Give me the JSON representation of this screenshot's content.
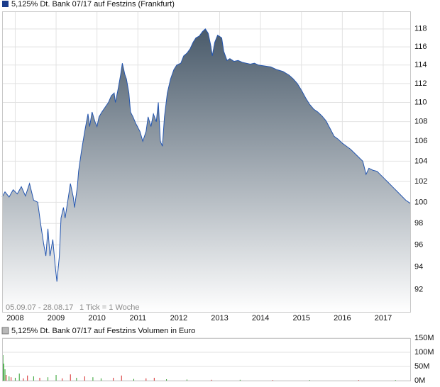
{
  "chart_data": [
    {
      "type": "area",
      "title": "5,125% Dt. Bank 07/17 auf Festzins (Frankfurt)",
      "annotations": [
        "05.09.07 - 28.08.17",
        "1 Tick = 1 Woche"
      ],
      "x": [
        2007.68,
        2007.75,
        2007.85,
        2007.95,
        2008.05,
        2008.15,
        2008.25,
        2008.35,
        2008.45,
        2008.55,
        2008.62,
        2008.7,
        2008.75,
        2008.8,
        2008.85,
        2008.92,
        2008.98,
        2009.02,
        2009.08,
        2009.12,
        2009.18,
        2009.22,
        2009.3,
        2009.35,
        2009.42,
        2009.45,
        2009.52,
        2009.55,
        2009.62,
        2009.7,
        2009.78,
        2009.82,
        2009.88,
        2009.95,
        2010.0,
        2010.05,
        2010.12,
        2010.2,
        2010.28,
        2010.35,
        2010.42,
        2010.45,
        2010.52,
        2010.58,
        2010.62,
        2010.68,
        2010.72,
        2010.78,
        2010.82,
        2010.88,
        2010.95,
        2011.05,
        2011.12,
        2011.2,
        2011.25,
        2011.32,
        2011.38,
        2011.45,
        2011.5,
        2011.55,
        2011.6,
        2011.65,
        2011.72,
        2011.8,
        2011.88,
        2011.95,
        2012.05,
        2012.12,
        2012.2,
        2012.28,
        2012.35,
        2012.42,
        2012.5,
        2012.58,
        2012.65,
        2012.72,
        2012.78,
        2012.82,
        2012.88,
        2012.95,
        2013.05,
        2013.1,
        2013.18,
        2013.25,
        2013.35,
        2013.45,
        2013.55,
        2013.65,
        2013.75,
        2013.85,
        2013.95,
        2014.1,
        2014.25,
        2014.4,
        2014.55,
        2014.7,
        2014.8,
        2014.9,
        2015.0,
        2015.1,
        2015.2,
        2015.3,
        2015.4,
        2015.5,
        2015.6,
        2015.7,
        2015.8,
        2015.9,
        2016.0,
        2016.1,
        2016.2,
        2016.3,
        2016.4,
        2016.5,
        2016.58,
        2016.65,
        2016.75,
        2016.85,
        2016.95,
        2017.05,
        2017.15,
        2017.25,
        2017.35,
        2017.45,
        2017.55,
        2017.66
      ],
      "values": [
        100.5,
        101,
        100.5,
        101.2,
        100.8,
        101.5,
        100.6,
        101.8,
        100.2,
        100,
        98,
        96,
        95,
        97.5,
        95,
        96.5,
        94,
        92.7,
        95,
        98.5,
        99.5,
        98.5,
        100.5,
        101.8,
        100.5,
        99.5,
        101.5,
        103,
        105,
        107,
        108.8,
        107.5,
        109,
        108,
        107.5,
        108.5,
        109,
        109.5,
        110,
        110.7,
        111,
        110,
        111.5,
        113,
        114.2,
        113,
        112.5,
        111,
        109,
        108.5,
        107.8,
        107,
        106,
        107,
        108.5,
        107.5,
        108.8,
        108,
        110,
        106,
        105.5,
        108.5,
        111,
        112.5,
        113.5,
        114,
        114.2,
        115,
        115.3,
        115.8,
        116.5,
        117,
        117.2,
        117.7,
        118,
        117.5,
        116.2,
        115,
        116.5,
        117.3,
        117,
        115.5,
        114.5,
        114.7,
        114.4,
        114.5,
        114.3,
        114.2,
        114.1,
        114.2,
        114,
        113.9,
        113.8,
        113.5,
        113.3,
        112.9,
        112.5,
        112,
        111.3,
        110.5,
        109.8,
        109.3,
        109,
        108.6,
        108.1,
        107.3,
        106.5,
        106.2,
        105.8,
        105.5,
        105.2,
        104.8,
        104.4,
        104,
        102.7,
        103.3,
        103.1,
        103,
        102.6,
        102.2,
        101.8,
        101.4,
        101,
        100.6,
        100.2,
        99.9
      ],
      "color": "#2456b0",
      "legend_color": "#1a3c8c",
      "fill_top": "#495a6a",
      "fill_bottom": "#ffffff",
      "log_scale": true,
      "grid": true,
      "xlim": [
        2007.68,
        2017.66
      ],
      "xticks": [
        2008,
        2009,
        2010,
        2011,
        2012,
        2013,
        2014,
        2015,
        2016,
        2017
      ],
      "ylim": [
        90,
        120
      ],
      "yticks": [
        92,
        94,
        96,
        98,
        100,
        102,
        104,
        106,
        108,
        110,
        112,
        114,
        116,
        118
      ]
    },
    {
      "type": "bar",
      "title": "5,125% Dt. Bank 07/17 auf Festzins Volumen in Euro",
      "legend_color": "#b8b8b8",
      "x": [
        2007.7,
        2007.72,
        2007.75,
        2007.78,
        2007.85,
        2007.9,
        2008.0,
        2008.1,
        2008.2,
        2008.3,
        2008.45,
        2008.6,
        2008.8,
        2009.0,
        2009.15,
        2009.35,
        2009.5,
        2009.7,
        2009.9,
        2010.1,
        2010.4,
        2010.6,
        2010.9,
        2011.2,
        2011.4,
        2011.7,
        2012.2,
        2012.8,
        2013.5,
        2014.3,
        2015.2,
        2016.4,
        2017.3
      ],
      "values": [
        90000000,
        60000000,
        40000000,
        20000000,
        15000000,
        12000000,
        10000000,
        25000000,
        8000000,
        18000000,
        15000000,
        10000000,
        12000000,
        20000000,
        8000000,
        22000000,
        10000000,
        15000000,
        12000000,
        8000000,
        10000000,
        18000000,
        6000000,
        8000000,
        10000000,
        5000000,
        4000000,
        3000000,
        3000000,
        2000000,
        2000000,
        2000000,
        2000000
      ],
      "colors": [
        "#2ca02c",
        "#2ca02c",
        "#2ca02c",
        "#d62728",
        "#2ca02c",
        "#d62728",
        "#2ca02c",
        "#2ca02c",
        "#d62728",
        "#d62728",
        "#2ca02c",
        "#d62728",
        "#2ca02c",
        "#2ca02c",
        "#d62728",
        "#d62728",
        "#2ca02c",
        "#d62728",
        "#2ca02c",
        "#2ca02c",
        "#d62728",
        "#d62728",
        "#2ca02c",
        "#d62728",
        "#d62728",
        "#2ca02c",
        "#2ca02c",
        "#d62728",
        "#2ca02c",
        "#d62728",
        "#2ca02c",
        "#d62728",
        "#2ca02c"
      ],
      "grid": true,
      "xlim": [
        2007.68,
        2017.66
      ],
      "ylim": [
        0,
        150000000
      ],
      "yticks": [
        {
          "value": 0,
          "label": "0M"
        },
        {
          "value": 50000000,
          "label": "50M"
        },
        {
          "value": 100000000,
          "label": "100M"
        },
        {
          "value": 150000000,
          "label": "150M"
        }
      ]
    }
  ]
}
